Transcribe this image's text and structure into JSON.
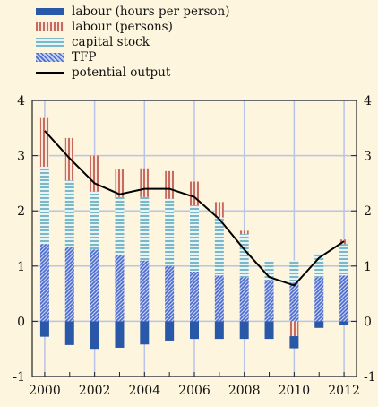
{
  "chart_data": {
    "type": "bar",
    "stacked": true,
    "x": [
      2000,
      2001,
      2002,
      2003,
      2004,
      2005,
      2006,
      2007,
      2008,
      2009,
      2010,
      2011,
      2012
    ],
    "xticks": [
      "2000",
      "2002",
      "2004",
      "2006",
      "2008",
      "2010",
      "2012"
    ],
    "yticks": [
      "4",
      "3",
      "2",
      "1",
      "0",
      "-1"
    ],
    "ylim": [
      -1,
      4
    ],
    "grid": true,
    "legend_position": "top-left",
    "series": [
      {
        "name": "labour (hours per person)",
        "kind": "bar",
        "color": "#2a58a8",
        "pattern": "solid",
        "values": [
          -0.28,
          -0.43,
          -0.5,
          -0.48,
          -0.42,
          -0.35,
          -0.32,
          -0.32,
          -0.32,
          -0.32,
          -0.22,
          -0.12,
          -0.06
        ]
      },
      {
        "name": "labour (persons)",
        "kind": "bar",
        "color": "#c86a5e",
        "pattern": "vertical-stripes",
        "values": [
          0.88,
          0.77,
          0.65,
          0.5,
          0.52,
          0.5,
          0.43,
          0.28,
          0.06,
          0.0,
          -0.27,
          0.0,
          0.08
        ]
      },
      {
        "name": "capital stock",
        "kind": "bar",
        "color": "#7ab8c8",
        "pattern": "horizontal-stripes",
        "values": [
          1.4,
          1.2,
          1.05,
          1.05,
          1.15,
          1.22,
          1.2,
          1.05,
          0.78,
          0.35,
          0.4,
          0.43,
          0.57
        ]
      },
      {
        "name": "TFP",
        "kind": "bar",
        "color": "#4a6ad0",
        "pattern": "diagonal-hatch",
        "values": [
          1.4,
          1.35,
          1.3,
          1.2,
          1.1,
          1.0,
          0.9,
          0.83,
          0.8,
          0.75,
          0.7,
          0.8,
          0.83
        ]
      },
      {
        "name": "potential output",
        "kind": "line",
        "color": "#000000",
        "values": [
          3.45,
          2.95,
          2.5,
          2.3,
          2.4,
          2.4,
          2.25,
          1.85,
          1.3,
          0.8,
          0.65,
          1.15,
          1.45
        ]
      }
    ]
  }
}
